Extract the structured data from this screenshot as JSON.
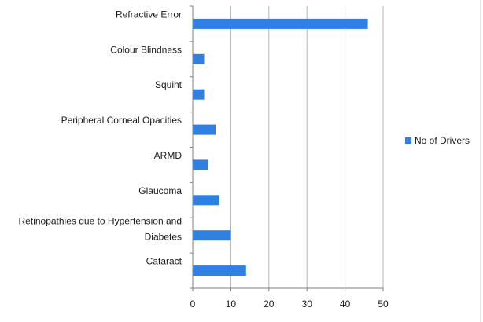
{
  "colors": {
    "bar": "#2f80e0",
    "grid": "#b3b3b3",
    "axis": "#808080"
  },
  "chart_data": {
    "type": "bar",
    "orientation": "horizontal",
    "categories": [
      [
        "Refractive Error"
      ],
      [
        "Colour Blindness"
      ],
      [
        "Squint"
      ],
      [
        "Peripheral Corneal Opacities"
      ],
      [
        "ARMD"
      ],
      [
        "Glaucoma"
      ],
      [
        "Retinopathies due to Hypertension and",
        "Diabetes"
      ],
      [
        "Cataract"
      ]
    ],
    "series": [
      {
        "name": "No of Drivers",
        "values": [
          46,
          3,
          3,
          6,
          4,
          7,
          10,
          14
        ]
      }
    ],
    "xlim": [
      0,
      50
    ],
    "xticks": [
      0,
      10,
      20,
      30,
      40,
      50
    ],
    "grid": true,
    "legend": "right"
  }
}
